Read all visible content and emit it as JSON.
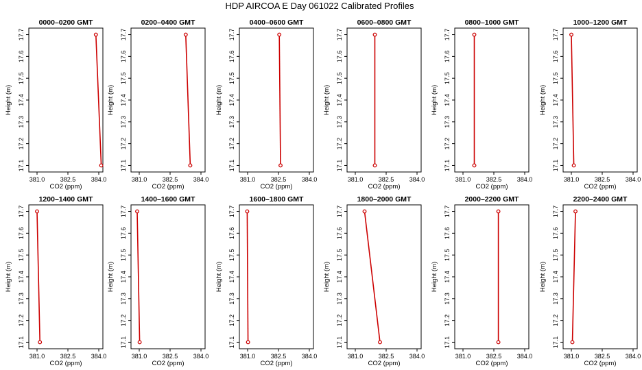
{
  "figure_title": "HDP AIRCOA E  Day 061022  Calibrated Profiles",
  "chart_data": [
    {
      "type": "line",
      "title": "0000–0200 GMT",
      "xlabel": "CO2 (ppm)",
      "ylabel": "Height (m)",
      "xlim": [
        380.6,
        384.2
      ],
      "ylim": [
        17.07,
        17.73
      ],
      "xticks": [
        "381.0",
        "382.5",
        "384.0"
      ],
      "yticks": [
        "17.1",
        "17.2",
        "17.3",
        "17.4",
        "17.5",
        "17.6",
        "17.7"
      ],
      "series": [
        {
          "x": [
            383.86,
            384.12
          ],
          "y": [
            17.7,
            17.1
          ]
        }
      ],
      "color": "#cc0000"
    },
    {
      "type": "line",
      "title": "0200–0400 GMT",
      "xlabel": "CO2 (ppm)",
      "ylabel": "Height (m)",
      "xlim": [
        380.6,
        384.2
      ],
      "ylim": [
        17.07,
        17.73
      ],
      "xticks": [
        "381.0",
        "382.5",
        "384.0"
      ],
      "yticks": [
        "17.1",
        "17.2",
        "17.3",
        "17.4",
        "17.5",
        "17.6",
        "17.7"
      ],
      "series": [
        {
          "x": [
            383.26,
            383.48
          ],
          "y": [
            17.7,
            17.1
          ]
        }
      ],
      "color": "#cc0000"
    },
    {
      "type": "line",
      "title": "0400–0600 GMT",
      "xlabel": "CO2 (ppm)",
      "ylabel": "Height (m)",
      "xlim": [
        380.6,
        384.2
      ],
      "ylim": [
        17.07,
        17.73
      ],
      "xticks": [
        "381.0",
        "382.5",
        "384.0"
      ],
      "yticks": [
        "17.1",
        "17.2",
        "17.3",
        "17.4",
        "17.5",
        "17.6",
        "17.7"
      ],
      "series": [
        {
          "x": [
            382.54,
            382.6
          ],
          "y": [
            17.7,
            17.1
          ]
        }
      ],
      "color": "#cc0000"
    },
    {
      "type": "line",
      "title": "0600–0800 GMT",
      "xlabel": "CO2 (ppm)",
      "ylabel": "Height (m)",
      "xlim": [
        380.6,
        384.2
      ],
      "ylim": [
        17.07,
        17.73
      ],
      "xticks": [
        "381.0",
        "382.5",
        "384.0"
      ],
      "yticks": [
        "17.1",
        "17.2",
        "17.3",
        "17.4",
        "17.5",
        "17.6",
        "17.7"
      ],
      "series": [
        {
          "x": [
            381.95,
            381.95
          ],
          "y": [
            17.7,
            17.1
          ]
        }
      ],
      "color": "#cc0000"
    },
    {
      "type": "line",
      "title": "0800–1000 GMT",
      "xlabel": "CO2 (ppm)",
      "ylabel": "Height (m)",
      "xlim": [
        380.6,
        384.2
      ],
      "ylim": [
        17.07,
        17.73
      ],
      "xticks": [
        "381.0",
        "382.5",
        "384.0"
      ],
      "yticks": [
        "17.1",
        "17.2",
        "17.3",
        "17.4",
        "17.5",
        "17.6",
        "17.7"
      ],
      "series": [
        {
          "x": [
            381.55,
            381.55
          ],
          "y": [
            17.7,
            17.1
          ]
        }
      ],
      "color": "#cc0000"
    },
    {
      "type": "line",
      "title": "1000–1200 GMT",
      "xlabel": "CO2 (ppm)",
      "ylabel": "Height (m)",
      "xlim": [
        380.6,
        384.2
      ],
      "ylim": [
        17.07,
        17.73
      ],
      "xticks": [
        "381.0",
        "382.5",
        "384.0"
      ],
      "yticks": [
        "17.1",
        "17.2",
        "17.3",
        "17.4",
        "17.5",
        "17.6",
        "17.7"
      ],
      "series": [
        {
          "x": [
            381.0,
            381.12
          ],
          "y": [
            17.7,
            17.1
          ]
        }
      ],
      "color": "#cc0000"
    },
    {
      "type": "line",
      "title": "1200–1400 GMT",
      "xlabel": "CO2 (ppm)",
      "ylabel": "Height (m)",
      "xlim": [
        380.6,
        384.2
      ],
      "ylim": [
        17.07,
        17.73
      ],
      "xticks": [
        "381.0",
        "382.5",
        "384.0"
      ],
      "yticks": [
        "17.1",
        "17.2",
        "17.3",
        "17.4",
        "17.5",
        "17.6",
        "17.7"
      ],
      "series": [
        {
          "x": [
            381.0,
            381.14
          ],
          "y": [
            17.7,
            17.1
          ]
        }
      ],
      "color": "#cc0000"
    },
    {
      "type": "line",
      "title": "1400–1600 GMT",
      "xlabel": "CO2 (ppm)",
      "ylabel": "Height (m)",
      "xlim": [
        380.6,
        384.2
      ],
      "ylim": [
        17.07,
        17.73
      ],
      "xticks": [
        "381.0",
        "382.5",
        "384.0"
      ],
      "yticks": [
        "17.1",
        "17.2",
        "17.3",
        "17.4",
        "17.5",
        "17.6",
        "17.7"
      ],
      "series": [
        {
          "x": [
            380.9,
            381.02
          ],
          "y": [
            17.7,
            17.1
          ]
        }
      ],
      "color": "#cc0000"
    },
    {
      "type": "line",
      "title": "1600–1800 GMT",
      "xlabel": "CO2 (ppm)",
      "ylabel": "Height (m)",
      "xlim": [
        380.6,
        384.2
      ],
      "ylim": [
        17.07,
        17.73
      ],
      "xticks": [
        "381.0",
        "382.5",
        "384.0"
      ],
      "yticks": [
        "17.1",
        "17.2",
        "17.3",
        "17.4",
        "17.5",
        "17.6",
        "17.7"
      ],
      "series": [
        {
          "x": [
            380.98,
            381.02
          ],
          "y": [
            17.7,
            17.1
          ]
        }
      ],
      "color": "#cc0000"
    },
    {
      "type": "line",
      "title": "1800–2000 GMT",
      "xlabel": "CO2 (ppm)",
      "ylabel": "Height (m)",
      "xlim": [
        380.6,
        384.2
      ],
      "ylim": [
        17.07,
        17.73
      ],
      "xticks": [
        "381.0",
        "382.5",
        "384.0"
      ],
      "yticks": [
        "17.1",
        "17.2",
        "17.3",
        "17.4",
        "17.5",
        "17.6",
        "17.7"
      ],
      "series": [
        {
          "x": [
            381.45,
            382.2
          ],
          "y": [
            17.7,
            17.1
          ]
        }
      ],
      "color": "#cc0000"
    },
    {
      "type": "line",
      "title": "2000–2200 GMT",
      "xlabel": "CO2 (ppm)",
      "ylabel": "Height (m)",
      "xlim": [
        380.6,
        384.2
      ],
      "ylim": [
        17.07,
        17.73
      ],
      "xticks": [
        "381.0",
        "382.5",
        "384.0"
      ],
      "yticks": [
        "17.1",
        "17.2",
        "17.3",
        "17.4",
        "17.5",
        "17.6",
        "17.7"
      ],
      "series": [
        {
          "x": [
            382.72,
            382.72
          ],
          "y": [
            17.7,
            17.1
          ]
        }
      ],
      "color": "#cc0000"
    },
    {
      "type": "line",
      "title": "2200–2400 GMT",
      "xlabel": "CO2 (ppm)",
      "ylabel": "Height (m)",
      "xlim": [
        380.6,
        384.2
      ],
      "ylim": [
        17.07,
        17.73
      ],
      "xticks": [
        "381.0",
        "382.5",
        "384.0"
      ],
      "yticks": [
        "17.1",
        "17.2",
        "17.3",
        "17.4",
        "17.5",
        "17.6",
        "17.7"
      ],
      "series": [
        {
          "x": [
            381.2,
            381.05
          ],
          "y": [
            17.7,
            17.1
          ]
        }
      ],
      "color": "#cc0000"
    }
  ]
}
